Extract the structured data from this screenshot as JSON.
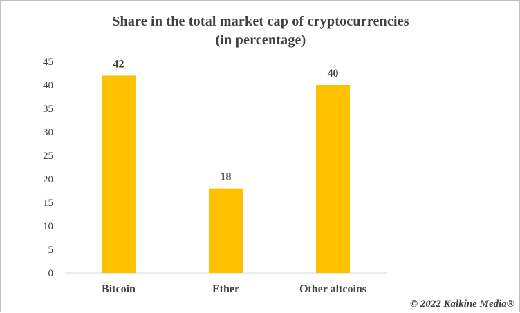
{
  "chart_data": {
    "type": "bar",
    "title": "Share in the total market cap of cryptocurrencies",
    "subtitle": "(in percentage)",
    "categories": [
      "Bitcoin",
      "Ether",
      "Other altcoins"
    ],
    "values": [
      42,
      18,
      40
    ],
    "ylim": [
      0,
      45
    ],
    "yticks": [
      0,
      5,
      10,
      15,
      20,
      25,
      30,
      35,
      40,
      45
    ],
    "bar_color": "#FFC000",
    "grid": false,
    "data_labels": true
  },
  "watermark": "© 2022 Kalkine Media®"
}
